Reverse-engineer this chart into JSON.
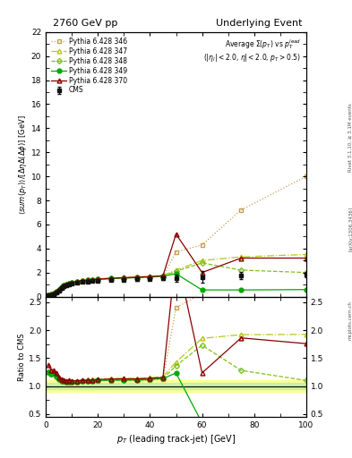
{
  "title_left": "2760 GeV pp",
  "title_right": "Underlying Event",
  "plot_title": "Average $\\Sigma(p_T)$ vs $p_T^{lead}$ ($|\\eta_l|<2.0$, $\\eta|<2.0$, $p_T>0.5$)",
  "ylabel_main": "$\\langle sum(p_T)\\rangle/[\\Delta\\eta\\Delta(\\Delta\\phi)]$ [GeV]",
  "ylabel_ratio": "Ratio to CMS",
  "xlabel": "$p_T$ (leading track-jet) [GeV]",
  "right_label1": "Rivet 3.1.10, ≥ 3.1M events",
  "right_label2": "[arXiv:1306.3436]",
  "right_label3": "mcplots.cern.ch",
  "ylim_main": [
    0,
    22
  ],
  "ylim_ratio": [
    0.45,
    2.6
  ],
  "xlim": [
    0,
    100
  ],
  "cms_x": [
    1.0,
    2.0,
    3.0,
    4.0,
    5.0,
    6.0,
    7.0,
    8.0,
    9.0,
    10.0,
    12.0,
    14.0,
    16.0,
    18.0,
    20.0,
    25.0,
    30.0,
    35.0,
    40.0,
    45.0,
    50.0,
    60.0,
    75.0,
    100.0
  ],
  "cms_y": [
    0.08,
    0.14,
    0.22,
    0.35,
    0.52,
    0.7,
    0.84,
    0.94,
    1.01,
    1.07,
    1.15,
    1.2,
    1.24,
    1.27,
    1.3,
    1.35,
    1.39,
    1.43,
    1.46,
    1.5,
    1.54,
    1.62,
    1.72,
    1.82
  ],
  "cms_yerr": [
    0.01,
    0.01,
    0.02,
    0.02,
    0.02,
    0.03,
    0.03,
    0.04,
    0.04,
    0.05,
    0.05,
    0.06,
    0.06,
    0.06,
    0.07,
    0.08,
    0.08,
    0.09,
    0.1,
    0.12,
    0.3,
    0.5,
    0.3,
    0.2
  ],
  "py346_x": [
    1.0,
    2.0,
    3.0,
    4.0,
    5.0,
    6.0,
    7.0,
    8.0,
    9.0,
    10.0,
    12.0,
    14.0,
    16.0,
    18.0,
    20.0,
    25.0,
    30.0,
    35.0,
    40.0,
    45.0,
    50.0,
    60.0,
    75.0,
    100.0
  ],
  "py346_y": [
    0.1,
    0.17,
    0.27,
    0.41,
    0.58,
    0.76,
    0.91,
    1.01,
    1.09,
    1.15,
    1.24,
    1.3,
    1.35,
    1.39,
    1.42,
    1.48,
    1.53,
    1.57,
    1.62,
    1.68,
    3.7,
    4.3,
    7.2,
    10.0
  ],
  "py347_x": [
    1.0,
    2.0,
    3.0,
    4.0,
    5.0,
    6.0,
    7.0,
    8.0,
    9.0,
    10.0,
    12.0,
    14.0,
    16.0,
    18.0,
    20.0,
    25.0,
    30.0,
    35.0,
    40.0,
    45.0,
    50.0,
    60.0,
    75.0,
    100.0
  ],
  "py347_y": [
    0.1,
    0.17,
    0.27,
    0.42,
    0.59,
    0.77,
    0.92,
    1.03,
    1.1,
    1.17,
    1.26,
    1.33,
    1.38,
    1.42,
    1.46,
    1.53,
    1.58,
    1.63,
    1.68,
    1.75,
    2.2,
    3.0,
    3.3,
    3.5
  ],
  "py348_x": [
    1.0,
    2.0,
    3.0,
    4.0,
    5.0,
    6.0,
    7.0,
    8.0,
    9.0,
    10.0,
    12.0,
    14.0,
    16.0,
    18.0,
    20.0,
    25.0,
    30.0,
    35.0,
    40.0,
    45.0,
    50.0,
    60.0,
    75.0,
    100.0
  ],
  "py348_y": [
    0.1,
    0.17,
    0.27,
    0.41,
    0.58,
    0.76,
    0.91,
    1.01,
    1.09,
    1.15,
    1.24,
    1.3,
    1.35,
    1.39,
    1.43,
    1.49,
    1.54,
    1.58,
    1.63,
    1.7,
    2.1,
    2.8,
    2.2,
    2.0
  ],
  "py349_x": [
    1.0,
    2.0,
    3.0,
    4.0,
    5.0,
    6.0,
    7.0,
    8.0,
    9.0,
    10.0,
    12.0,
    14.0,
    16.0,
    18.0,
    20.0,
    25.0,
    30.0,
    35.0,
    40.0,
    45.0,
    50.0,
    60.0,
    75.0,
    100.0
  ],
  "py349_y": [
    0.1,
    0.17,
    0.27,
    0.41,
    0.58,
    0.76,
    0.91,
    1.01,
    1.09,
    1.15,
    1.24,
    1.3,
    1.35,
    1.39,
    1.43,
    1.49,
    1.54,
    1.58,
    1.63,
    1.7,
    1.9,
    0.55,
    0.55,
    0.58
  ],
  "py370_x": [
    1.0,
    2.0,
    3.0,
    4.0,
    5.0,
    6.0,
    7.0,
    8.0,
    9.0,
    10.0,
    12.0,
    14.0,
    16.0,
    18.0,
    20.0,
    25.0,
    30.0,
    35.0,
    40.0,
    45.0,
    50.0,
    60.0,
    75.0,
    100.0
  ],
  "py370_y": [
    0.11,
    0.18,
    0.28,
    0.43,
    0.6,
    0.78,
    0.93,
    1.03,
    1.11,
    1.17,
    1.26,
    1.32,
    1.37,
    1.41,
    1.45,
    1.52,
    1.57,
    1.61,
    1.66,
    1.73,
    5.2,
    2.0,
    3.2,
    3.2
  ],
  "color_346": "#c8a050",
  "color_347": "#b8c818",
  "color_348": "#80c020",
  "color_349": "#00aa00",
  "color_370": "#8b0000",
  "color_cms": "#111111",
  "cms_band_outer": "#ffff80",
  "cms_band_inner": "#c8f0a0",
  "band_outer_lo": 0.9,
  "band_outer_hi": 1.1,
  "band_inner_lo": 0.95,
  "band_inner_hi": 1.05
}
